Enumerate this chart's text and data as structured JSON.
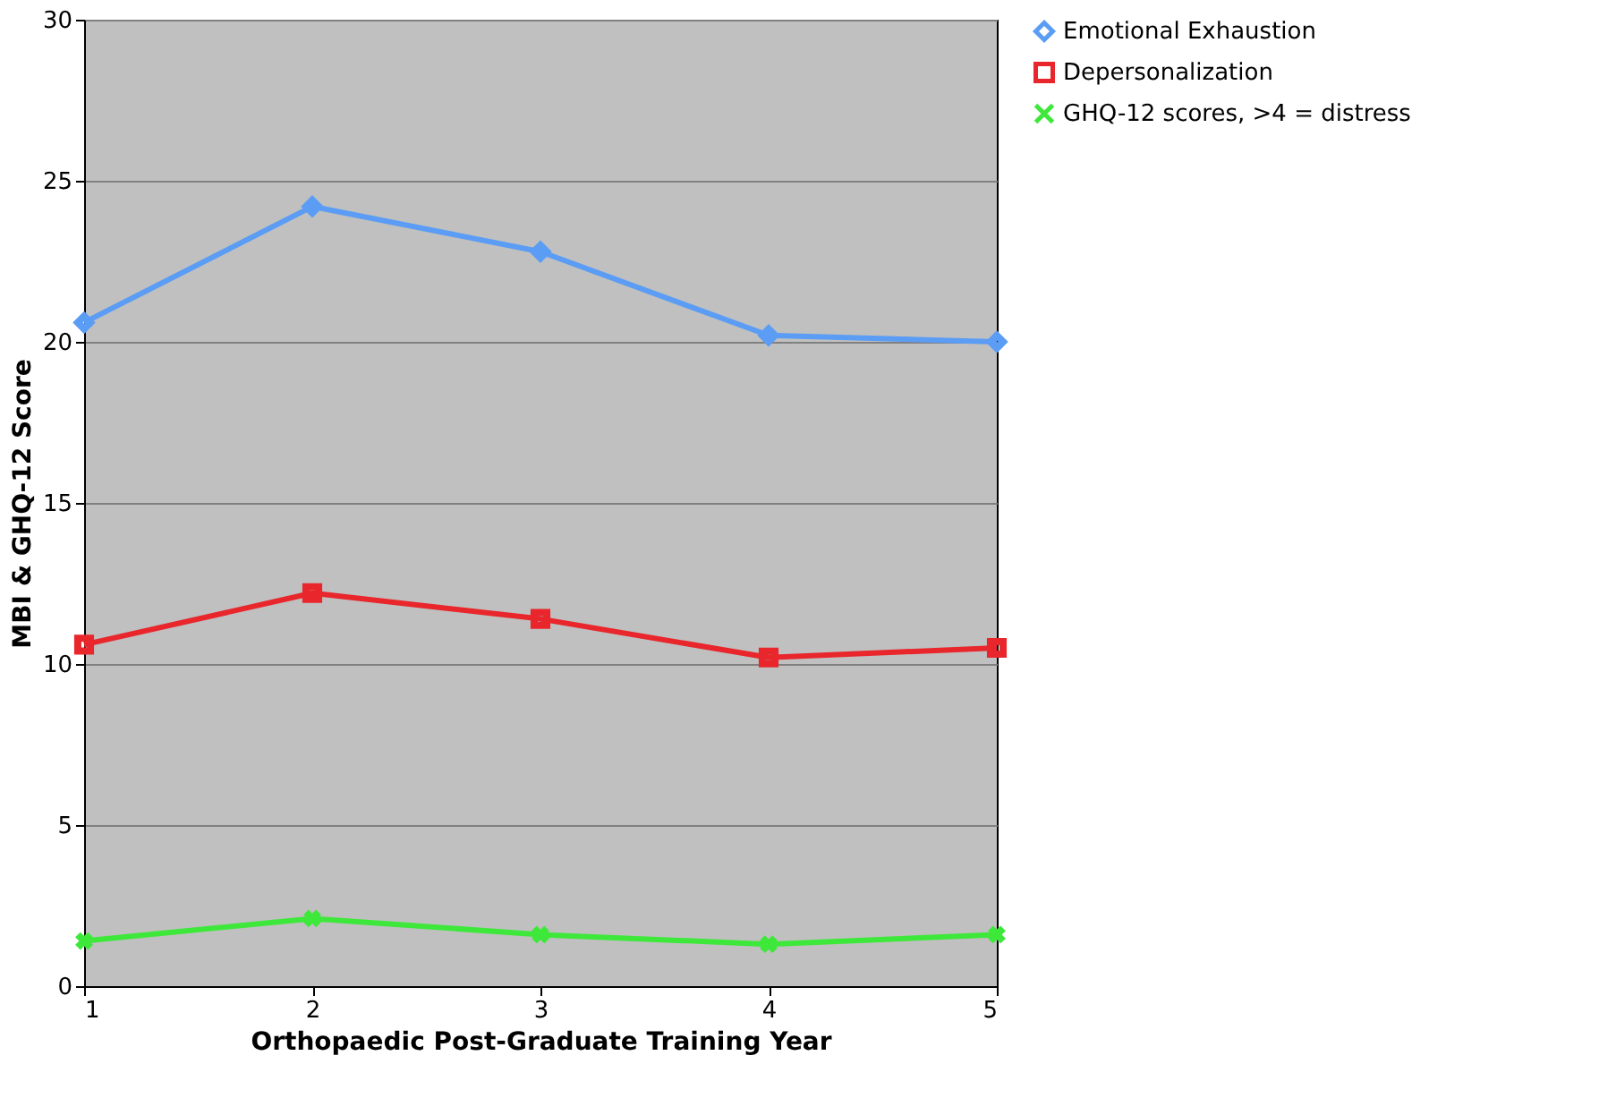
{
  "chart_data": {
    "type": "line",
    "xlabel": "Orthopaedic Post-Graduate Training Year",
    "ylabel": "MBI & GHQ-12 Score",
    "x": [
      1,
      2,
      3,
      4,
      5
    ],
    "xlim": [
      1,
      5
    ],
    "xticks": [
      1,
      2,
      3,
      4,
      5
    ],
    "ylim": [
      0,
      30
    ],
    "yticks": [
      0,
      5,
      10,
      15,
      20,
      25,
      30
    ],
    "grid": "y",
    "legend": "right",
    "line_style": "solid",
    "series": [
      {
        "name": "Emotional Exhaustion",
        "color": "#5b9cf5",
        "marker": "diamond",
        "values": [
          20.6,
          24.2,
          22.8,
          20.2,
          20.0
        ]
      },
      {
        "name": "Depersonalization",
        "color": "#e8262b",
        "marker": "square",
        "values": [
          10.6,
          12.2,
          11.4,
          10.2,
          10.5
        ]
      },
      {
        "name": "GHQ-12 scores, >4 = distress",
        "color": "#3ee83a",
        "marker": "cross",
        "values": [
          1.4,
          2.1,
          1.6,
          1.3,
          1.6
        ]
      }
    ]
  }
}
